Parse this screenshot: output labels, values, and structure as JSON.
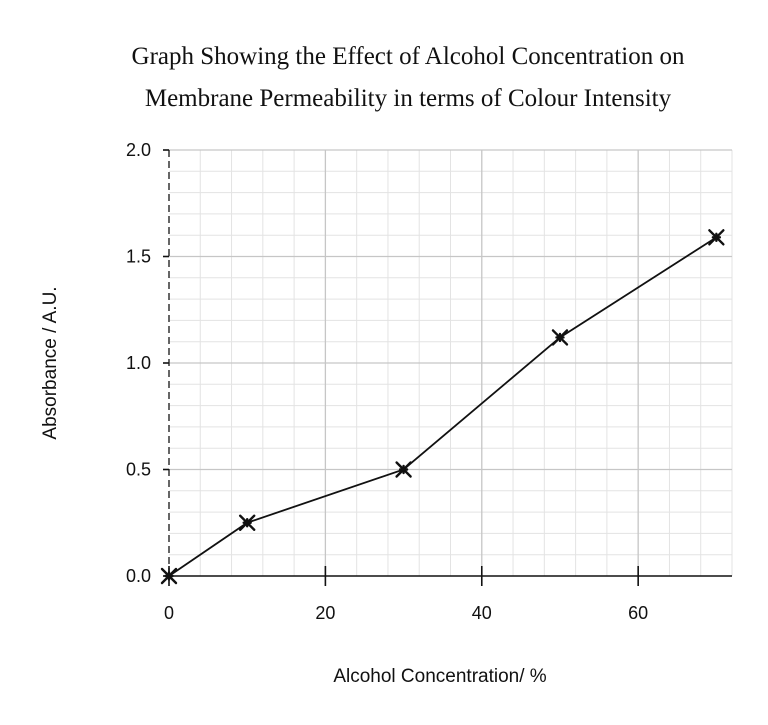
{
  "chart_data": {
    "type": "line",
    "title_lines": [
      "Graph Showing the Effect of Alcohol Concentration on",
      "Membrane Permeability in terms of Colour Intensity"
    ],
    "xlabel": "Alcohol Concentration/ %",
    "ylabel": "Absorbance / A.U.",
    "xlim": [
      0,
      72
    ],
    "ylim": [
      0,
      2.0
    ],
    "x_ticks": [
      0,
      20,
      40,
      60
    ],
    "x_tick_labels": [
      "0",
      "20",
      "40",
      "60"
    ],
    "y_ticks": [
      0,
      0.5,
      1.0,
      1.5,
      2.0
    ],
    "y_tick_labels": [
      "0.0",
      "0.5",
      "1.0",
      "1.5",
      "2.0"
    ],
    "x_minor_step": 4,
    "y_minor_step": 0.1,
    "grid": true,
    "marker": "star",
    "line_color": "#111111",
    "x": [
      0,
      10,
      30,
      50,
      70
    ],
    "y": [
      0.0,
      0.25,
      0.5,
      1.12,
      1.59
    ]
  }
}
